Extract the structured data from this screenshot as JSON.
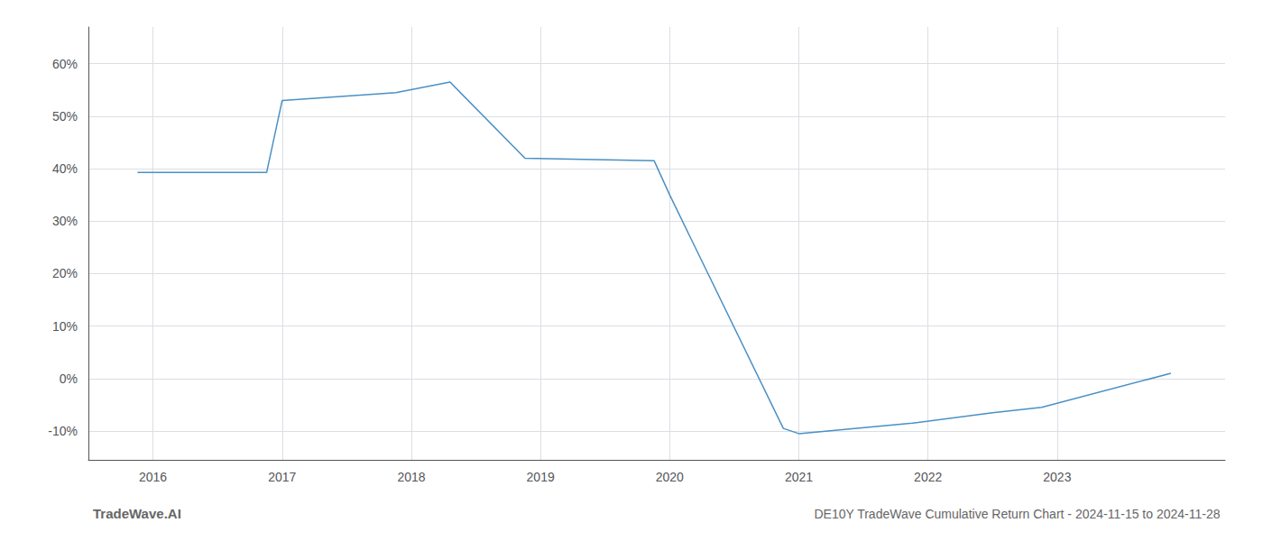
{
  "chart_data": {
    "type": "line",
    "title": "DE10Y TradeWave Cumulative Return Chart - 2024-11-15 to 2024-11-28",
    "annotations": [
      "TradeWave.AI"
    ],
    "x": [
      2015.88,
      2016.88,
      2017.0,
      2017.88,
      2018.3,
      2018.88,
      2019.88,
      2020.0,
      2020.88,
      2021.0,
      2021.88,
      2022.5,
      2022.88,
      2023.88
    ],
    "values": [
      0.393,
      0.393,
      0.53,
      0.545,
      0.565,
      0.42,
      0.415,
      0.35,
      -0.095,
      -0.105,
      -0.085,
      -0.065,
      -0.055,
      0.01
    ],
    "color": "#4a90c4",
    "xlim": [
      2015.5,
      2024.3
    ],
    "xticks": [
      2016,
      2017,
      2018,
      2019,
      2020,
      2021,
      2022,
      2023
    ],
    "ylim": [
      -0.155,
      0.67
    ],
    "yticks": [
      {
        "value": -0.1,
        "label": "-10%"
      },
      {
        "value": 0.0,
        "label": "0%"
      },
      {
        "value": 0.1,
        "label": "10%"
      },
      {
        "value": 0.2,
        "label": "20%"
      },
      {
        "value": 0.3,
        "label": "30%"
      },
      {
        "value": 0.4,
        "label": "40%"
      },
      {
        "value": 0.5,
        "label": "50%"
      },
      {
        "value": 0.6,
        "label": "60%"
      }
    ],
    "grid": true
  }
}
